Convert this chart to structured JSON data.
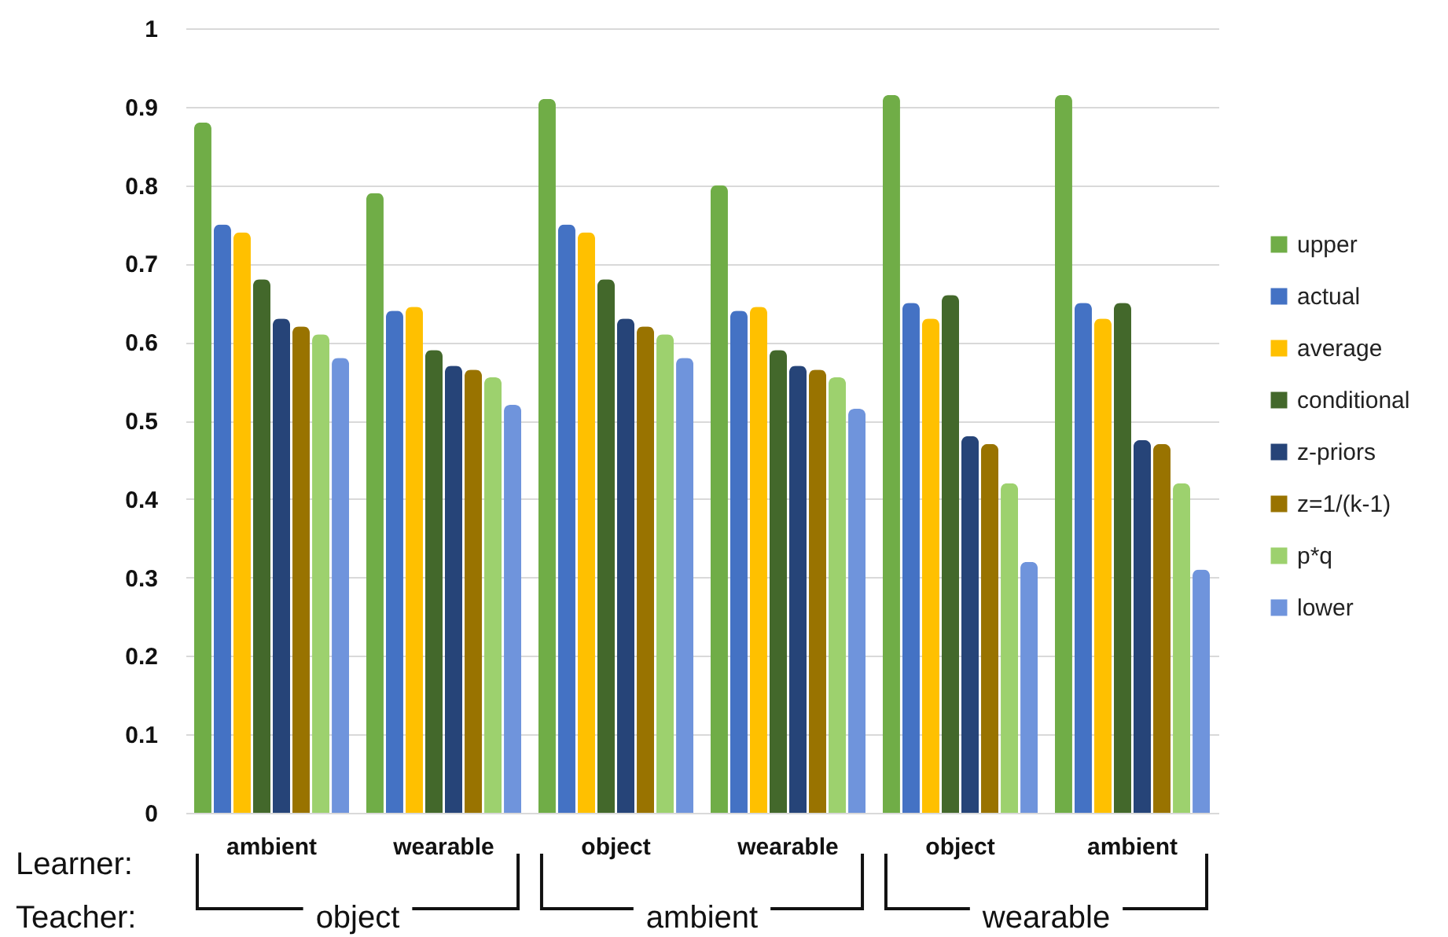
{
  "chart_data": {
    "type": "bar",
    "categories": [
      "ambient",
      "wearable",
      "object",
      "wearable",
      "object",
      "ambient"
    ],
    "series": [
      {
        "name": "upper",
        "color": "#70ad47",
        "values": [
          0.88,
          0.79,
          0.91,
          0.8,
          0.915,
          0.915
        ]
      },
      {
        "name": "actual",
        "color": "#4472c4",
        "values": [
          0.75,
          0.64,
          0.75,
          0.64,
          0.65,
          0.65
        ]
      },
      {
        "name": "average",
        "color": "#ffc000",
        "values": [
          0.74,
          0.645,
          0.74,
          0.645,
          0.63,
          0.63
        ]
      },
      {
        "name": "conditional",
        "color": "#43682b",
        "values": [
          0.68,
          0.59,
          0.68,
          0.59,
          0.66,
          0.65
        ]
      },
      {
        "name": "z-priors",
        "color": "#264478",
        "values": [
          0.63,
          0.57,
          0.63,
          0.57,
          0.48,
          0.475
        ]
      },
      {
        "name": "z=1/(k-1)",
        "color": "#997300",
        "values": [
          0.62,
          0.565,
          0.62,
          0.565,
          0.47,
          0.47
        ]
      },
      {
        "name": "p*q",
        "color": "#9dd16e",
        "values": [
          0.61,
          0.555,
          0.61,
          0.555,
          0.42,
          0.42
        ]
      },
      {
        "name": "lower",
        "color": "#6f94dc",
        "values": [
          0.58,
          0.52,
          0.58,
          0.515,
          0.32,
          0.31
        ]
      }
    ],
    "ylim": [
      0,
      1
    ],
    "yticks": [
      0,
      0.1,
      0.2,
      0.3,
      0.4,
      0.5,
      0.6,
      0.7,
      0.8,
      0.9,
      1
    ],
    "grid": "y",
    "legend": "right",
    "annotations": [
      "Learner:",
      "Teacher:",
      "object",
      "ambient",
      "wearable"
    ]
  }
}
